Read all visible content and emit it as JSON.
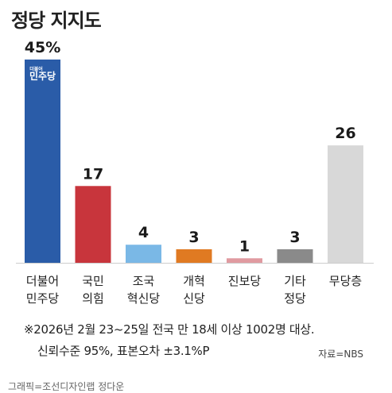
{
  "title": "정당 지지도",
  "chart_data": {
    "type": "bar",
    "categories": [
      [
        "더불어",
        "민주당"
      ],
      [
        "국민",
        "의힘"
      ],
      [
        "조국",
        "혁신당"
      ],
      [
        "개혁",
        "신당"
      ],
      [
        "진보당"
      ],
      [
        "기타",
        "정당"
      ],
      [
        "무당층"
      ]
    ],
    "values": [
      45,
      17,
      4,
      3,
      1,
      3,
      26
    ],
    "data_labels": [
      "45%",
      "17",
      "4",
      "3",
      "1",
      "3",
      "26"
    ],
    "colors": [
      "#2a5ca8",
      "#c8353c",
      "#7ab8e6",
      "#e07a22",
      "#e09aa0",
      "#8a8a8a",
      "#d8d8d8"
    ],
    "ylim": [
      0,
      45
    ],
    "grid": false,
    "legend": "none"
  },
  "logo": {
    "top_text": "더불어",
    "main_text": "민주당"
  },
  "notes": {
    "line1": "※2026년 2월 23~25일 전국 만 18세 이상 1002명 대상.",
    "line2": "신뢰수준 95%, 표본오차 ±3.1%P",
    "source": "자료=NBS"
  },
  "credit": "그래픽=조선디자인랩 정다운"
}
